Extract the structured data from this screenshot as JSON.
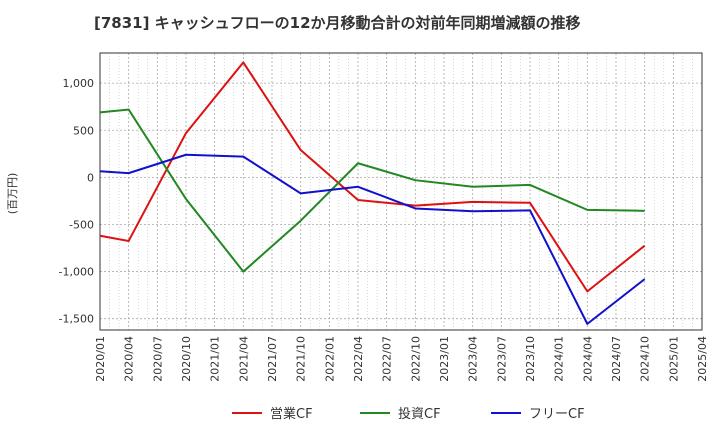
{
  "chart_data": {
    "type": "line",
    "title": "[7831]  キャッシュフローの12か月移動合計の対前年同期増減額の推移",
    "xlabel": "",
    "ylabel": "(百万円)",
    "ylim": [
      -1620,
      1320
    ],
    "yticks": [
      1000,
      500,
      0,
      -500,
      -1000,
      -1500
    ],
    "ytick_labels": [
      "1,000",
      "500",
      "0",
      "-500",
      "-1,000",
      "-1,500"
    ],
    "categories": [
      "2020/01",
      "2020/04",
      "2020/07",
      "2020/10",
      "2021/01",
      "2021/04",
      "2021/07",
      "2021/10",
      "2022/01",
      "2022/04",
      "2022/07",
      "2022/10",
      "2023/01",
      "2023/04",
      "2023/07",
      "2023/10",
      "2024/01",
      "2024/04",
      "2024/07",
      "2024/10",
      "2025/01",
      "2025/04"
    ],
    "grid": true,
    "legend_position": "bottom",
    "series": [
      {
        "name": "営業CF",
        "color": "#dd1111",
        "values": [
          -620,
          -675,
          null,
          470,
          null,
          1220,
          null,
          290,
          null,
          -240,
          null,
          -300,
          null,
          -260,
          null,
          -270,
          null,
          -1210,
          null,
          -725,
          null,
          null
        ]
      },
      {
        "name": "投資CF",
        "color": "#228822",
        "values": [
          690,
          720,
          null,
          -230,
          null,
          -1000,
          null,
          -460,
          null,
          150,
          null,
          -30,
          null,
          -100,
          null,
          -80,
          null,
          -345,
          null,
          -355,
          null,
          null
        ]
      },
      {
        "name": "フリーCF",
        "color": "#1111cc",
        "values": [
          65,
          45,
          null,
          240,
          null,
          220,
          null,
          -170,
          null,
          -100,
          null,
          -330,
          null,
          -360,
          null,
          -350,
          null,
          -1555,
          null,
          -1080,
          null,
          null
        ]
      }
    ]
  }
}
